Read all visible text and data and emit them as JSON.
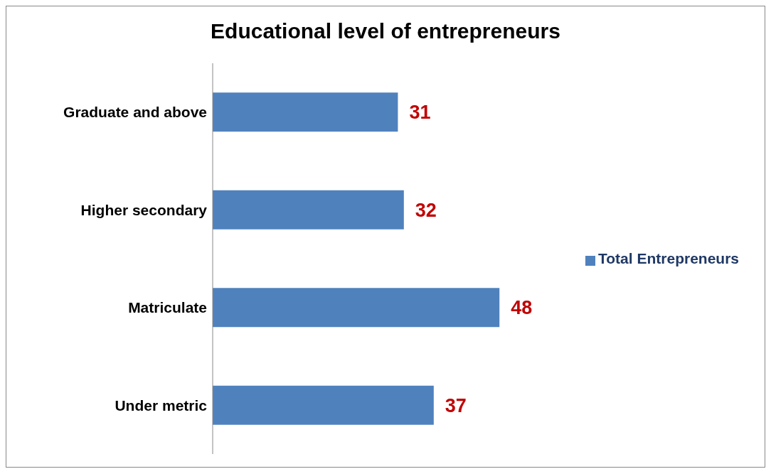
{
  "chart_data": {
    "type": "bar",
    "orientation": "horizontal",
    "title": "Educational level of entrepreneurs",
    "categories": [
      "Graduate and above",
      "Higher secondary",
      "Matriculate",
      "Under metric"
    ],
    "series": [
      {
        "name": "Total Entrepreneurs",
        "color": "#4f81bd",
        "values": [
          31,
          32,
          48,
          37
        ]
      }
    ],
    "data_labels": true,
    "legend": "right",
    "grid": false
  }
}
